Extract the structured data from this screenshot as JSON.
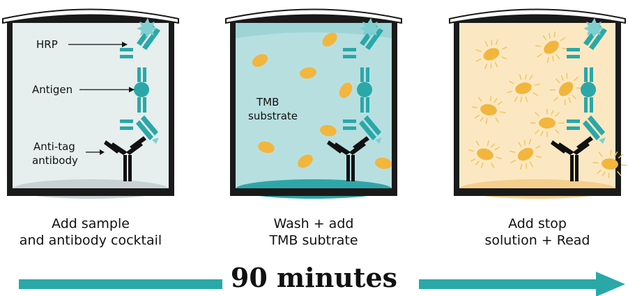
{
  "labels": {
    "hrp": "HRP",
    "antigen": "Antigen",
    "anti_tag_line1": "Anti-tag",
    "anti_tag_line2": "antibody",
    "tmb_line1": "TMB",
    "tmb_line2": "substrate"
  },
  "steps": [
    {
      "line1": "Add sample",
      "line2": "and antibody cocktail"
    },
    {
      "line1": "Wash + add",
      "line2": "TMB subtrate"
    },
    {
      "line1": "Add stop",
      "line2": "solution + Read"
    }
  ],
  "duration": "90 minutes",
  "colors": {
    "teal": "#2aa8a8",
    "hrp": "#7fcfd0",
    "well1_fill": "#e6eeee",
    "well2_fill": "#b8dfe0",
    "well3_fill": "#fbe8c3",
    "substrate": "#f2b63c",
    "outline": "#1a1a1a"
  }
}
